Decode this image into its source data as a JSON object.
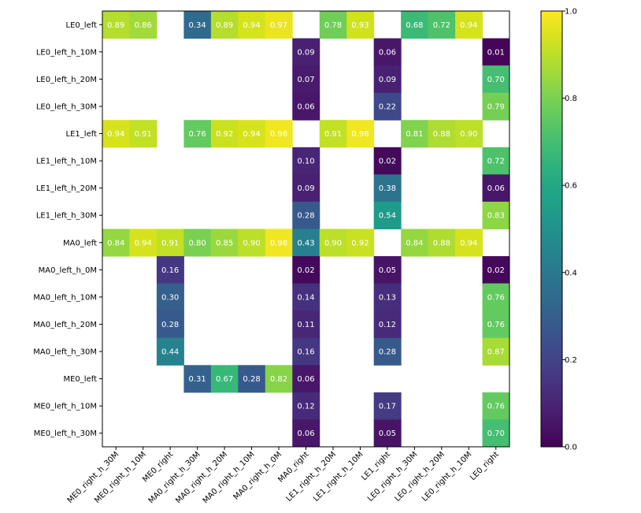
{
  "chart_data": {
    "type": "heatmap",
    "title": "",
    "xlabel": "",
    "ylabel": "",
    "colormap": "viridis",
    "value_range": [
      0.0,
      1.0
    ],
    "rows": [
      "LE0_left",
      "LE0_left_h_10M",
      "LE0_left_h_20M",
      "LE0_left_h_30M",
      "LE1_left",
      "LE1_left_h_10M",
      "LE1_left_h_20M",
      "LE1_left_h_30M",
      "MA0_left",
      "MA0_left_h_0M",
      "MA0_left_h_10M",
      "MA0_left_h_20M",
      "MA0_left_h_30M",
      "ME0_left",
      "ME0_left_h_10M",
      "ME0_left_h_30M"
    ],
    "columns": [
      "ME0_right_h_30M",
      "ME0_right_h_10M",
      "ME0_right",
      "MA0_right_h_30M",
      "MA0_right_h_20M",
      "MA0_right_h_10M",
      "MA0_right_h_0M",
      "MA0_right",
      "LE1_right_h_20M",
      "LE1_right_h_10M",
      "LE1_right",
      "LE0_right_h_30M",
      "LE0_right_h_20M",
      "LE0_right_h_10M",
      "LE0_right"
    ],
    "values": [
      [
        0.89,
        0.86,
        null,
        0.34,
        0.89,
        0.94,
        0.97,
        null,
        0.78,
        0.93,
        null,
        0.68,
        0.72,
        0.94,
        null
      ],
      [
        null,
        null,
        null,
        null,
        null,
        null,
        null,
        0.09,
        null,
        null,
        0.06,
        null,
        null,
        null,
        0.01
      ],
      [
        null,
        null,
        null,
        null,
        null,
        null,
        null,
        0.07,
        null,
        null,
        0.09,
        null,
        null,
        null,
        0.7
      ],
      [
        null,
        null,
        null,
        null,
        null,
        null,
        null,
        0.06,
        null,
        null,
        0.22,
        null,
        null,
        null,
        0.79
      ],
      [
        0.94,
        0.91,
        null,
        0.76,
        0.92,
        0.94,
        0.98,
        null,
        0.91,
        0.98,
        null,
        0.81,
        0.88,
        0.9,
        null
      ],
      [
        null,
        null,
        null,
        null,
        null,
        null,
        null,
        0.1,
        null,
        null,
        0.02,
        null,
        null,
        null,
        0.72
      ],
      [
        null,
        null,
        null,
        null,
        null,
        null,
        null,
        0.09,
        null,
        null,
        0.38,
        null,
        null,
        null,
        0.06
      ],
      [
        null,
        null,
        null,
        null,
        null,
        null,
        null,
        0.28,
        null,
        null,
        0.54,
        null,
        null,
        null,
        0.83
      ],
      [
        0.84,
        0.94,
        0.91,
        0.8,
        0.85,
        0.9,
        0.98,
        0.43,
        0.9,
        0.92,
        null,
        0.84,
        0.88,
        0.94,
        null
      ],
      [
        null,
        null,
        0.16,
        null,
        null,
        null,
        null,
        0.02,
        null,
        null,
        0.05,
        null,
        null,
        null,
        0.02
      ],
      [
        null,
        null,
        0.3,
        null,
        null,
        null,
        null,
        0.14,
        null,
        null,
        0.13,
        null,
        null,
        null,
        0.76
      ],
      [
        null,
        null,
        0.28,
        null,
        null,
        null,
        null,
        0.11,
        null,
        null,
        0.12,
        null,
        null,
        null,
        0.76
      ],
      [
        null,
        null,
        0.44,
        null,
        null,
        null,
        null,
        0.16,
        null,
        null,
        0.28,
        null,
        null,
        null,
        0.87
      ],
      [
        null,
        null,
        null,
        0.31,
        0.67,
        0.28,
        0.82,
        0.06,
        null,
        null,
        null,
        null,
        null,
        null,
        null
      ],
      [
        null,
        null,
        null,
        null,
        null,
        null,
        null,
        0.12,
        null,
        null,
        0.17,
        null,
        null,
        null,
        0.76
      ],
      [
        null,
        null,
        null,
        null,
        null,
        null,
        null,
        0.06,
        null,
        null,
        0.05,
        null,
        null,
        null,
        0.7
      ]
    ],
    "colorbar": {
      "ticks": [
        0.0,
        0.2,
        0.4,
        0.6,
        0.8,
        1.0
      ],
      "tick_labels": [
        "0.0",
        "0.2",
        "0.4",
        "0.6",
        "0.8",
        "1.0"
      ]
    }
  }
}
